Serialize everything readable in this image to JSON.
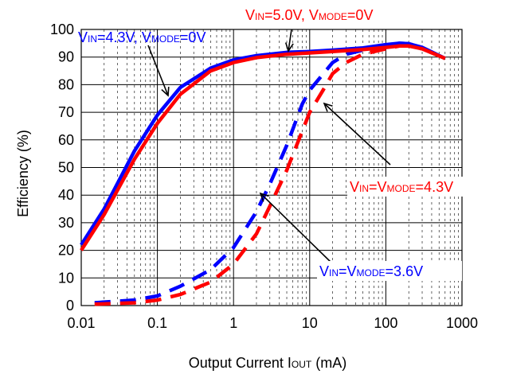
{
  "chart_data": {
    "type": "line",
    "xlabel": {
      "main": "Output Current I",
      "sub": "OUT",
      "tail": " (mA)"
    },
    "ylabel": "Efficiency  (%)",
    "x_scale": "log",
    "xlim": [
      0.01,
      1000
    ],
    "ylim": [
      0,
      100
    ],
    "x_ticks": [
      0.01,
      0.1,
      1,
      10,
      100,
      1000
    ],
    "x_tick_labels": [
      "0.01",
      "0.1",
      "1",
      "10",
      "100",
      "1000"
    ],
    "y_ticks": [
      0,
      10,
      20,
      30,
      40,
      50,
      60,
      70,
      80,
      90,
      100
    ],
    "y_tick_labels": [
      "0",
      "10",
      "20",
      "30",
      "40",
      "50",
      "60",
      "70",
      "80",
      "90",
      "100"
    ],
    "grid": true,
    "series": [
      {
        "key": "blue-solid",
        "color": "#0000ff",
        "dashed": false,
        "points": [
          [
            0.01,
            22
          ],
          [
            0.02,
            35
          ],
          [
            0.05,
            56
          ],
          [
            0.1,
            69
          ],
          [
            0.2,
            79
          ],
          [
            0.5,
            86
          ],
          [
            1,
            89
          ],
          [
            2,
            90.5
          ],
          [
            5,
            91.7
          ],
          [
            10,
            92
          ],
          [
            20,
            92.5
          ],
          [
            50,
            93.3
          ],
          [
            100,
            94.5
          ],
          [
            150,
            95
          ],
          [
            200,
            94.8
          ],
          [
            300,
            93.5
          ],
          [
            600,
            89.5
          ]
        ]
      },
      {
        "key": "red-solid",
        "color": "#ff0000",
        "dashed": false,
        "points": [
          [
            0.01,
            20
          ],
          [
            0.02,
            33
          ],
          [
            0.05,
            53
          ],
          [
            0.1,
            66
          ],
          [
            0.2,
            76.5
          ],
          [
            0.5,
            85
          ],
          [
            1,
            88
          ],
          [
            2,
            89.8
          ],
          [
            5,
            91
          ],
          [
            10,
            91.5
          ],
          [
            20,
            92
          ],
          [
            50,
            92.7
          ],
          [
            100,
            93.5
          ],
          [
            150,
            94
          ],
          [
            200,
            94
          ],
          [
            300,
            93
          ],
          [
            600,
            89.5
          ]
        ]
      },
      {
        "key": "blue-dashed",
        "color": "#0000ff",
        "dashed": true,
        "points": [
          [
            0.015,
            1
          ],
          [
            0.05,
            2
          ],
          [
            0.1,
            3.5
          ],
          [
            0.2,
            7
          ],
          [
            0.5,
            13
          ],
          [
            1,
            21
          ],
          [
            2,
            34
          ],
          [
            3,
            44
          ],
          [
            5,
            58
          ],
          [
            8,
            73
          ],
          [
            10,
            78
          ],
          [
            20,
            88
          ],
          [
            30,
            91
          ],
          [
            50,
            92.5
          ],
          [
            100,
            94
          ],
          [
            150,
            95
          ],
          [
            200,
            94.8
          ],
          [
            300,
            93.5
          ],
          [
            600,
            89.5
          ]
        ]
      },
      {
        "key": "red-dashed",
        "color": "#ff0000",
        "dashed": true,
        "points": [
          [
            0.015,
            0.5
          ],
          [
            0.05,
            1
          ],
          [
            0.1,
            2
          ],
          [
            0.2,
            4
          ],
          [
            0.5,
            8.5
          ],
          [
            1,
            15
          ],
          [
            2,
            26
          ],
          [
            3,
            36
          ],
          [
            5,
            49
          ],
          [
            10,
            70
          ],
          [
            15,
            78
          ],
          [
            20,
            84
          ],
          [
            30,
            88
          ],
          [
            50,
            91
          ],
          [
            100,
            93
          ],
          [
            150,
            94
          ],
          [
            200,
            94
          ],
          [
            300,
            93
          ],
          [
            600,
            89.5
          ]
        ]
      }
    ],
    "annotations": [
      {
        "key": "blue-solid",
        "color": "#0000ff",
        "parts": [
          [
            "V",
            "IN",
            "=4.3V, V",
            "MODE",
            "=0V"
          ]
        ]
      },
      {
        "key": "red-solid",
        "color": "#ff0000",
        "parts": [
          [
            "V",
            "IN",
            "=5.0V, V",
            "MODE",
            "=0V"
          ]
        ]
      },
      {
        "key": "red-dashed",
        "color": "#ff0000",
        "parts": [
          [
            "V",
            "IN",
            "=V",
            "MODE",
            "=4.3V"
          ]
        ]
      },
      {
        "key": "blue-dashed",
        "color": "#0000ff",
        "parts": [
          [
            "V",
            "IN",
            "=V",
            "MODE",
            "=3.6V"
          ]
        ]
      }
    ]
  }
}
